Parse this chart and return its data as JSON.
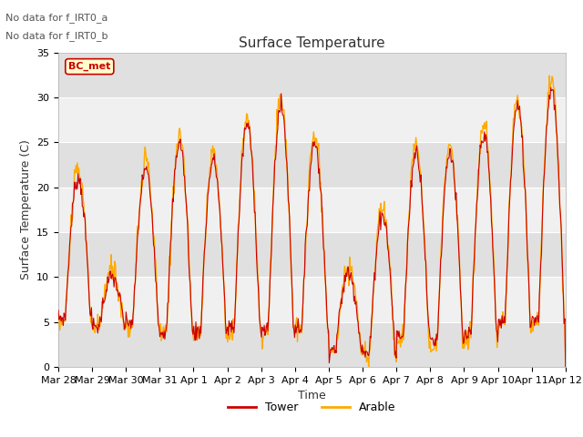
{
  "title": "Surface Temperature",
  "xlabel": "Time",
  "ylabel": "Surface Temperature (C)",
  "ylim": [
    0,
    35
  ],
  "yticks": [
    0,
    5,
    10,
    15,
    20,
    25,
    30,
    35
  ],
  "x_tick_labels": [
    "Mar 28",
    "Mar 29",
    "Mar 30",
    "Mar 31",
    "Apr 1",
    "Apr 2",
    "Apr 3",
    "Apr 4",
    "Apr 5",
    "Apr 6",
    "Apr 7",
    "Apr 8",
    "Apr 9",
    "Apr 10",
    "Apr 11",
    "Apr 12"
  ],
  "tower_color": "#cc0000",
  "arable_color": "#ffaa00",
  "bc_met_fill": "#ffffcc",
  "bc_met_border": "#cc0000",
  "fig_bg": "#ffffff",
  "plot_bg": "#f0f0f0",
  "band_light": "#f0f0f0",
  "band_dark": "#e0e0e0",
  "annotation_text1": "No data for f_IRT0_a",
  "annotation_text2": "No data for f_IRT0_b",
  "legend_box_label": "BC_met",
  "title_fontsize": 11,
  "axis_label_fontsize": 9,
  "tick_fontsize": 8,
  "annot_fontsize": 8
}
